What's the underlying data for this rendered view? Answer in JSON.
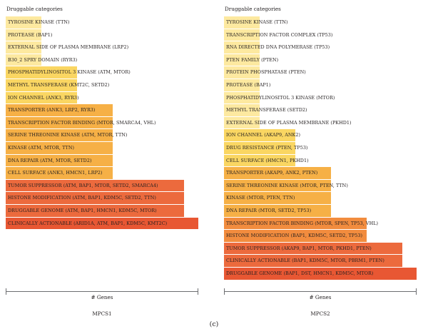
{
  "figure": {
    "label": "(c)"
  },
  "chart_data": [
    {
      "type": "bar",
      "orientation": "horizontal",
      "title": "Druggable categories",
      "panel": "MPCS1",
      "xlabel": "# Genes",
      "ylabel": "",
      "xlim": [
        0,
        5.4
      ],
      "categories": [
        "TYROSINE KINASE (TTN)",
        "PROTEASE (BAP1)",
        "EXTERNAL SIDE OF PLASMA MEMBRANE (LRP2)",
        "B30_2 SPRY DOMAIN (RYR3)",
        "PHOSPHATIDYLINOSITOL 3 KINASE (ATM, MTOR)",
        "METHYL TRANSFERASE (KMT2C, SETD2)",
        "ION CHANNEL (ANK3, RYR3)",
        "TRANSPORTER (ANK3, LRP2, RYR3)",
        "TRANSCRIPTION FACTOR BINDING (MTOR, SMARCA4, VHL)",
        "SERINE THREONINE KINASE (ATM, MTOR, TTN)",
        "KINASE (ATM, MTOR, TTN)",
        "DNA REPAIR (ATM, MTOR, SETD2)",
        "CELL SURFACE (ANK3, HMCN1, LRP2)",
        "TUMOR SUPPRESSOR (ATM, BAP1, MTOR, SETD2, SMARCA4)",
        "HISTONE MODIFICATION (ATM, BAP1, KDM5C, SETD2, TTN)",
        "DRUGGABLE GENOME (ATM, BAP1, HMCN1, KDM5C, MTOR)",
        "CLINICALLY ACTIONABLE (ARID1A, ATM, BAP1, KDM5C, KMT2C)"
      ],
      "values": [
        1,
        1,
        1,
        1,
        2,
        2,
        2,
        3,
        3,
        3,
        3,
        3,
        3,
        5,
        5,
        5,
        5.4
      ],
      "colors": [
        "#fde9a0",
        "#fde9a0",
        "#fde9a0",
        "#fde9a0",
        "#fad662",
        "#fad662",
        "#fad662",
        "#f6b046",
        "#f6b046",
        "#f6b046",
        "#f6b046",
        "#f6b046",
        "#f6b046",
        "#ec6a3d",
        "#ec6a3d",
        "#ec6a3d",
        "#e85733"
      ]
    },
    {
      "type": "bar",
      "orientation": "horizontal",
      "title": "Druggable categories",
      "panel": "MPCS2",
      "xlabel": "# Genes",
      "ylabel": "",
      "xlim": [
        0,
        5.4
      ],
      "categories": [
        "TYROSINE KINASE (TTN)",
        "TRANSCRIPTION FACTOR COMPLEX (TP53)",
        "RNA DIRECTED DNA POLYMERASE (TP53)",
        "PTEN FAMILY (PTEN)",
        "PROTEIN PHOSPHATASE (PTEN)",
        "PROTEASE (BAP1)",
        "PHOSPHATIDYLINOSITOL 3 KINASE (MTOR)",
        "METHYL TRANSFERASE (SETD2)",
        "EXTERNAL SIDE OF PLASMA MEMBRANE (PKHD1)",
        "ION CHANNEL (AKAP9, ANK2)",
        "DRUG RESISTANCE (PTEN, TP53)",
        "CELL SURFACE (HMCN1, PKHD1)",
        "TRANSPORTER (AKAP9, ANK2, PTEN)",
        "SERINE THREONINE KINASE (MTOR, PTEN, TTN)",
        "KINASE (MTOR, PTEN, TTN)",
        "DNA REPAIR (MTOR, SETD2, TP53)",
        "TRANSCRIPTION FACTOR BINDING (MTOR, SPEN, TP53, VHL)",
        "HISTONE MODIFICATION (BAP1, KDM5C, SETD2, TP53)",
        "TUMOR SUPPRESSOR (AKAP9, BAP1, MTOR, PKHD1, PTEN)",
        "CLINICALLY ACTIONABLE (BAP1, KDM5C, MTOR, PBRM1, PTEN)",
        "DRUGGABLE GENOME (BAP1, DST, HMCN1, KDM5C, MTOR)"
      ],
      "values": [
        1,
        1,
        1,
        1,
        1,
        1,
        1,
        1,
        1,
        2,
        2,
        2,
        3,
        3,
        3,
        3,
        4,
        4,
        5,
        5,
        5.4
      ],
      "colors": [
        "#fde9a0",
        "#fde9a0",
        "#fde9a0",
        "#fde9a0",
        "#fde9a0",
        "#fde9a0",
        "#fde9a0",
        "#fde9a0",
        "#fde9a0",
        "#fad662",
        "#fad662",
        "#fad662",
        "#f6b046",
        "#f6b046",
        "#f6b046",
        "#f6b046",
        "#f28c3e",
        "#f28c3e",
        "#ec6a3d",
        "#ec6a3d",
        "#e85733"
      ]
    }
  ]
}
